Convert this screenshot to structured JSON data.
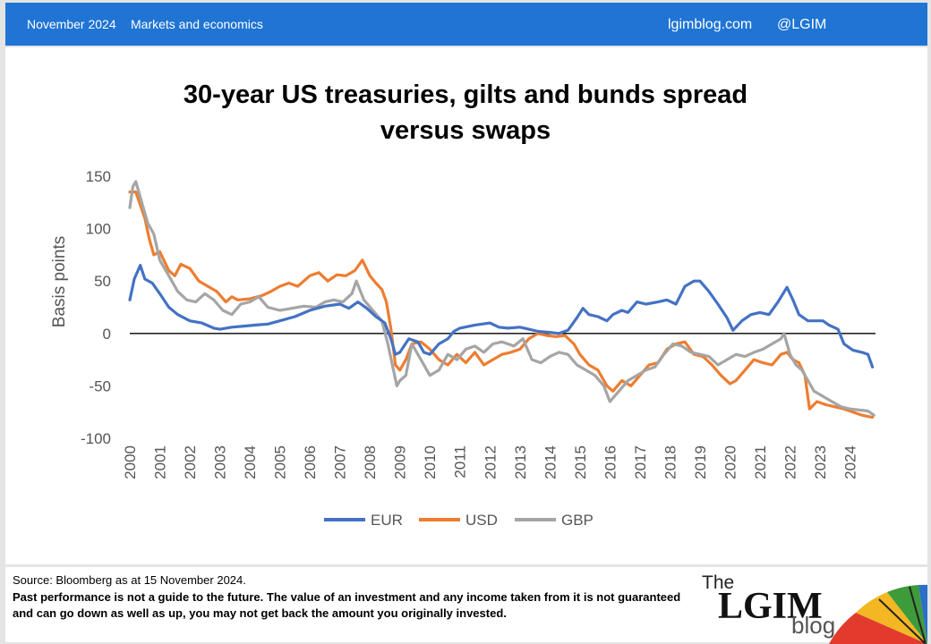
{
  "header": {
    "date": "November 2024",
    "section": "Markets and economics",
    "site": "lgimblog.com",
    "handle": "@LGIM"
  },
  "chart_title_line1": "30-year US treasuries, gilts and bunds spread",
  "chart_title_line2": "versus swaps",
  "footer": {
    "source": "Source: Bloomberg as at 15 November 2024.",
    "disclaimer": "Past performance is not a guide to the future. The value of an investment and any income taken from it is not guaranteed and can go down as well as up, you may  not get back the amount you originally invested."
  },
  "logo": {
    "the": "The",
    "brand": "LGIM",
    "blog": "blog"
  },
  "colors": {
    "header_bg": "#1f74d4",
    "EUR": "#4472c4",
    "USD": "#ed7d31",
    "GBP": "#a5a5a5"
  },
  "chart_data": {
    "type": "line",
    "title": "30-year US treasuries, gilts and bunds spread versus swaps",
    "ylabel": "Basis points",
    "xlabel": "",
    "ylim": [
      -100,
      150
    ],
    "yticks": [
      "150",
      "100",
      "50",
      "0",
      "-50",
      "-100"
    ],
    "xlim": [
      2000,
      2024.85
    ],
    "xticks": [
      "2000",
      "2001",
      "2002",
      "2003",
      "2004",
      "2005",
      "2006",
      "2007",
      "2008",
      "2009",
      "2010",
      "2011",
      "2012",
      "2013",
      "2014",
      "2015",
      "2016",
      "2017",
      "2018",
      "2019",
      "2020",
      "2021",
      "2022",
      "2023",
      "2024"
    ],
    "legend_position": "bottom",
    "series": [
      {
        "name": "EUR",
        "color": "#4472c4",
        "points": [
          [
            2000.0,
            32
          ],
          [
            2000.15,
            52
          ],
          [
            2000.35,
            65
          ],
          [
            2000.5,
            52
          ],
          [
            2000.75,
            48
          ],
          [
            2001.0,
            38
          ],
          [
            2001.3,
            25
          ],
          [
            2001.6,
            18
          ],
          [
            2002.0,
            12
          ],
          [
            2002.4,
            10
          ],
          [
            2002.8,
            5
          ],
          [
            2003.0,
            4
          ],
          [
            2003.4,
            6
          ],
          [
            2003.8,
            7
          ],
          [
            2004.2,
            8
          ],
          [
            2004.6,
            9
          ],
          [
            2005.0,
            12
          ],
          [
            2005.5,
            16
          ],
          [
            2006.0,
            22
          ],
          [
            2006.5,
            26
          ],
          [
            2007.0,
            28
          ],
          [
            2007.3,
            24
          ],
          [
            2007.6,
            30
          ],
          [
            2007.9,
            24
          ],
          [
            2008.2,
            16
          ],
          [
            2008.5,
            10
          ],
          [
            2008.7,
            -5
          ],
          [
            2008.85,
            -20
          ],
          [
            2009.0,
            -18
          ],
          [
            2009.3,
            -5
          ],
          [
            2009.6,
            -8
          ],
          [
            2009.8,
            -18
          ],
          [
            2010.0,
            -20
          ],
          [
            2010.3,
            -10
          ],
          [
            2010.6,
            -5
          ],
          [
            2010.8,
            2
          ],
          [
            2011.0,
            5
          ],
          [
            2011.5,
            8
          ],
          [
            2012.0,
            10
          ],
          [
            2012.3,
            6
          ],
          [
            2012.6,
            5
          ],
          [
            2013.0,
            6
          ],
          [
            2013.3,
            4
          ],
          [
            2013.6,
            2
          ],
          [
            2014.0,
            1
          ],
          [
            2014.3,
            0
          ],
          [
            2014.6,
            3
          ],
          [
            2014.9,
            15
          ],
          [
            2015.1,
            24
          ],
          [
            2015.3,
            18
          ],
          [
            2015.6,
            16
          ],
          [
            2015.9,
            12
          ],
          [
            2016.1,
            18
          ],
          [
            2016.4,
            22
          ],
          [
            2016.6,
            20
          ],
          [
            2016.9,
            30
          ],
          [
            2017.2,
            28
          ],
          [
            2017.6,
            30
          ],
          [
            2017.9,
            32
          ],
          [
            2018.2,
            28
          ],
          [
            2018.5,
            45
          ],
          [
            2018.8,
            50
          ],
          [
            2019.0,
            50
          ],
          [
            2019.3,
            40
          ],
          [
            2019.6,
            28
          ],
          [
            2019.9,
            15
          ],
          [
            2020.1,
            3
          ],
          [
            2020.4,
            12
          ],
          [
            2020.7,
            18
          ],
          [
            2021.0,
            20
          ],
          [
            2021.3,
            18
          ],
          [
            2021.6,
            30
          ],
          [
            2021.9,
            44
          ],
          [
            2022.1,
            32
          ],
          [
            2022.3,
            18
          ],
          [
            2022.6,
            12
          ],
          [
            2022.9,
            12
          ],
          [
            2023.1,
            12
          ],
          [
            2023.3,
            8
          ],
          [
            2023.6,
            4
          ],
          [
            2023.8,
            -10
          ],
          [
            2024.1,
            -16
          ],
          [
            2024.4,
            -18
          ],
          [
            2024.6,
            -20
          ],
          [
            2024.75,
            -32
          ]
        ]
      },
      {
        "name": "USD",
        "color": "#ed7d31",
        "points": [
          [
            2000.0,
            135
          ],
          [
            2000.2,
            135
          ],
          [
            2000.5,
            110
          ],
          [
            2000.65,
            90
          ],
          [
            2000.8,
            75
          ],
          [
            2001.0,
            78
          ],
          [
            2001.3,
            60
          ],
          [
            2001.5,
            55
          ],
          [
            2001.7,
            66
          ],
          [
            2002.0,
            62
          ],
          [
            2002.3,
            50
          ],
          [
            2002.6,
            45
          ],
          [
            2002.9,
            40
          ],
          [
            2003.2,
            30
          ],
          [
            2003.4,
            35
          ],
          [
            2003.6,
            32
          ],
          [
            2004.0,
            33
          ],
          [
            2004.4,
            36
          ],
          [
            2004.7,
            40
          ],
          [
            2005.0,
            45
          ],
          [
            2005.3,
            48
          ],
          [
            2005.6,
            45
          ],
          [
            2006.0,
            55
          ],
          [
            2006.3,
            58
          ],
          [
            2006.6,
            50
          ],
          [
            2006.9,
            56
          ],
          [
            2007.2,
            55
          ],
          [
            2007.5,
            60
          ],
          [
            2007.75,
            70
          ],
          [
            2008.0,
            55
          ],
          [
            2008.2,
            48
          ],
          [
            2008.4,
            42
          ],
          [
            2008.55,
            30
          ],
          [
            2008.7,
            5
          ],
          [
            2008.85,
            -30
          ],
          [
            2009.0,
            -35
          ],
          [
            2009.2,
            -25
          ],
          [
            2009.4,
            -10
          ],
          [
            2009.7,
            -8
          ],
          [
            2010.0,
            -15
          ],
          [
            2010.3,
            -25
          ],
          [
            2010.6,
            -30
          ],
          [
            2010.9,
            -20
          ],
          [
            2011.2,
            -28
          ],
          [
            2011.5,
            -18
          ],
          [
            2011.8,
            -30
          ],
          [
            2012.1,
            -25
          ],
          [
            2012.4,
            -20
          ],
          [
            2012.7,
            -18
          ],
          [
            2013.0,
            -15
          ],
          [
            2013.3,
            -5
          ],
          [
            2013.6,
            0
          ],
          [
            2013.9,
            -2
          ],
          [
            2014.2,
            -3
          ],
          [
            2014.5,
            -2
          ],
          [
            2014.8,
            -10
          ],
          [
            2015.0,
            -20
          ],
          [
            2015.3,
            -30
          ],
          [
            2015.6,
            -35
          ],
          [
            2015.9,
            -50
          ],
          [
            2016.1,
            -55
          ],
          [
            2016.4,
            -45
          ],
          [
            2016.7,
            -50
          ],
          [
            2017.0,
            -40
          ],
          [
            2017.3,
            -30
          ],
          [
            2017.6,
            -28
          ],
          [
            2017.9,
            -15
          ],
          [
            2018.2,
            -10
          ],
          [
            2018.5,
            -8
          ],
          [
            2018.8,
            -20
          ],
          [
            2019.1,
            -22
          ],
          [
            2019.4,
            -30
          ],
          [
            2019.7,
            -40
          ],
          [
            2020.0,
            -48
          ],
          [
            2020.2,
            -45
          ],
          [
            2020.5,
            -35
          ],
          [
            2020.8,
            -25
          ],
          [
            2021.1,
            -28
          ],
          [
            2021.4,
            -30
          ],
          [
            2021.7,
            -20
          ],
          [
            2021.9,
            -18
          ],
          [
            2022.1,
            -25
          ],
          [
            2022.3,
            -28
          ],
          [
            2022.5,
            -40
          ],
          [
            2022.65,
            -72
          ],
          [
            2022.9,
            -65
          ],
          [
            2023.2,
            -68
          ],
          [
            2023.5,
            -70
          ],
          [
            2023.8,
            -72
          ],
          [
            2024.1,
            -75
          ],
          [
            2024.4,
            -78
          ],
          [
            2024.75,
            -80
          ]
        ]
      },
      {
        "name": "GBP",
        "color": "#a5a5a5",
        "points": [
          [
            2000.0,
            120
          ],
          [
            2000.1,
            140
          ],
          [
            2000.2,
            145
          ],
          [
            2000.35,
            130
          ],
          [
            2000.6,
            105
          ],
          [
            2000.8,
            95
          ],
          [
            2001.0,
            70
          ],
          [
            2001.3,
            55
          ],
          [
            2001.6,
            40
          ],
          [
            2001.9,
            32
          ],
          [
            2002.2,
            30
          ],
          [
            2002.5,
            38
          ],
          [
            2002.8,
            32
          ],
          [
            2003.1,
            22
          ],
          [
            2003.4,
            18
          ],
          [
            2003.7,
            28
          ],
          [
            2004.0,
            30
          ],
          [
            2004.3,
            35
          ],
          [
            2004.6,
            25
          ],
          [
            2005.0,
            22
          ],
          [
            2005.4,
            24
          ],
          [
            2005.8,
            26
          ],
          [
            2006.2,
            25
          ],
          [
            2006.5,
            30
          ],
          [
            2006.8,
            32
          ],
          [
            2007.1,
            30
          ],
          [
            2007.4,
            38
          ],
          [
            2007.55,
            50
          ],
          [
            2007.8,
            32
          ],
          [
            2008.1,
            22
          ],
          [
            2008.4,
            12
          ],
          [
            2008.6,
            -10
          ],
          [
            2008.75,
            -30
          ],
          [
            2008.9,
            -50
          ],
          [
            2009.0,
            -45
          ],
          [
            2009.2,
            -40
          ],
          [
            2009.4,
            -10
          ],
          [
            2009.7,
            -25
          ],
          [
            2010.0,
            -40
          ],
          [
            2010.3,
            -35
          ],
          [
            2010.6,
            -20
          ],
          [
            2010.9,
            -25
          ],
          [
            2011.2,
            -15
          ],
          [
            2011.5,
            -12
          ],
          [
            2011.8,
            -18
          ],
          [
            2012.1,
            -10
          ],
          [
            2012.4,
            -8
          ],
          [
            2012.8,
            -12
          ],
          [
            2013.1,
            -5
          ],
          [
            2013.4,
            -25
          ],
          [
            2013.7,
            -28
          ],
          [
            2014.0,
            -22
          ],
          [
            2014.3,
            -18
          ],
          [
            2014.6,
            -20
          ],
          [
            2014.9,
            -30
          ],
          [
            2015.2,
            -35
          ],
          [
            2015.5,
            -40
          ],
          [
            2015.8,
            -50
          ],
          [
            2016.0,
            -65
          ],
          [
            2016.3,
            -55
          ],
          [
            2016.6,
            -45
          ],
          [
            2016.9,
            -40
          ],
          [
            2017.2,
            -35
          ],
          [
            2017.5,
            -32
          ],
          [
            2017.8,
            -20
          ],
          [
            2018.1,
            -10
          ],
          [
            2018.4,
            -12
          ],
          [
            2018.7,
            -18
          ],
          [
            2019.0,
            -20
          ],
          [
            2019.3,
            -22
          ],
          [
            2019.6,
            -30
          ],
          [
            2019.9,
            -25
          ],
          [
            2020.2,
            -20
          ],
          [
            2020.5,
            -22
          ],
          [
            2020.8,
            -18
          ],
          [
            2021.1,
            -15
          ],
          [
            2021.4,
            -10
          ],
          [
            2021.7,
            -5
          ],
          [
            2021.8,
            0
          ],
          [
            2022.0,
            -20
          ],
          [
            2022.2,
            -30
          ],
          [
            2022.4,
            -35
          ],
          [
            2022.6,
            -45
          ],
          [
            2022.8,
            -55
          ],
          [
            2023.1,
            -60
          ],
          [
            2023.4,
            -65
          ],
          [
            2023.7,
            -70
          ],
          [
            2024.0,
            -72
          ],
          [
            2024.3,
            -73
          ],
          [
            2024.6,
            -74
          ],
          [
            2024.8,
            -78
          ]
        ]
      }
    ]
  }
}
